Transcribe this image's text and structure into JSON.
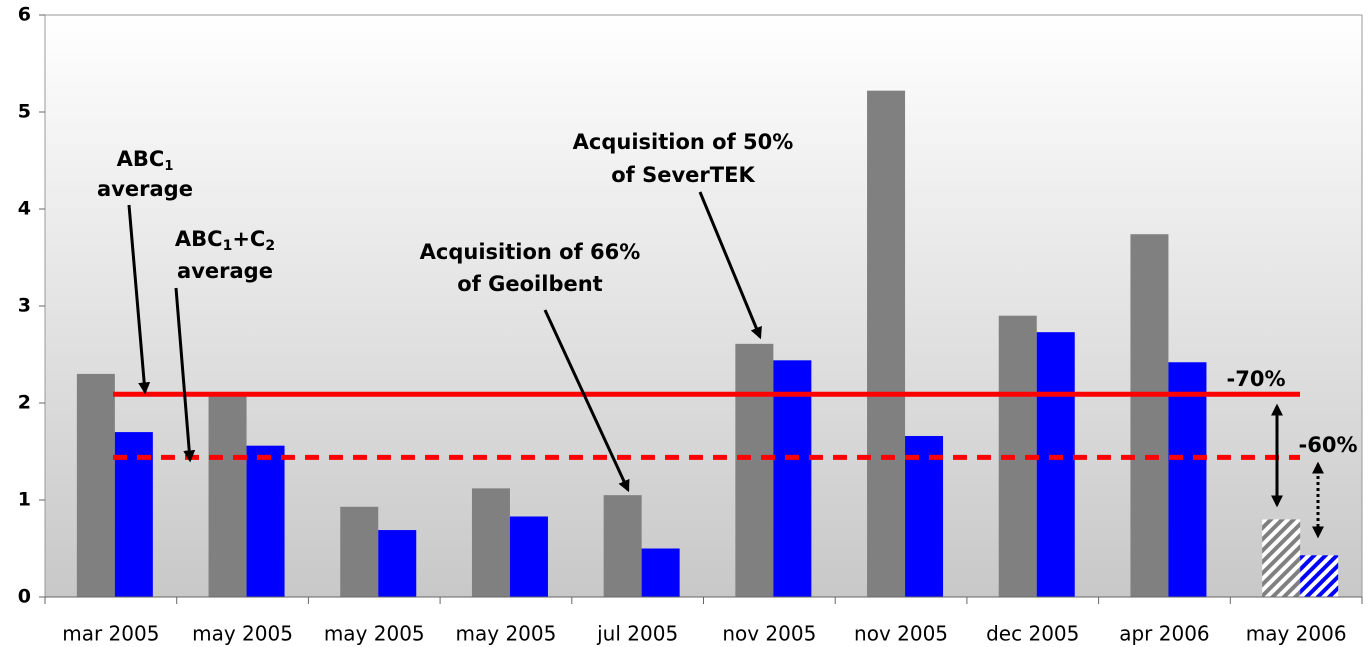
{
  "chart_data": {
    "type": "bar",
    "categories": [
      "mar 2005",
      "may 2005",
      "may 2005",
      "may 2005",
      "jul 2005",
      "nov 2005",
      "nov 2005",
      "dec 2005",
      "apr 2006",
      "may 2006"
    ],
    "series": [
      {
        "color": "#808080",
        "values": [
          2.3,
          2.1,
          0.93,
          1.12,
          1.05,
          2.61,
          5.22,
          2.9,
          3.74,
          0.8
        ]
      },
      {
        "color": "#0000ff",
        "values": [
          1.7,
          1.56,
          0.69,
          0.83,
          0.5,
          2.44,
          1.66,
          2.73,
          2.42,
          0.43
        ]
      }
    ],
    "hatched_indices": [
      9
    ],
    "ylim": [
      0,
      6
    ],
    "yticks": [
      0,
      1,
      2,
      3,
      4,
      5,
      6
    ],
    "reference_lines": [
      {
        "value": 2.09,
        "style": "solid",
        "color": "#ff0000"
      },
      {
        "value": 1.44,
        "style": "dashed",
        "color": "#ff0000"
      }
    ],
    "annotations": [
      {
        "lines": [
          [
            "ABC",
            "1"
          ],
          [
            "average"
          ]
        ]
      },
      {
        "lines": [
          [
            "ABC",
            "1",
            "+C",
            "2"
          ],
          [
            "average"
          ]
        ]
      },
      {
        "lines": [
          [
            "Acquisition of 66%"
          ],
          [
            "of Geoilbent"
          ]
        ]
      },
      {
        "lines": [
          [
            "Acquisition of 50%"
          ],
          [
            "of SeverTEK"
          ]
        ]
      },
      {
        "lines": [
          [
            "-70%"
          ]
        ]
      },
      {
        "lines": [
          [
            "-60%"
          ]
        ]
      }
    ]
  }
}
